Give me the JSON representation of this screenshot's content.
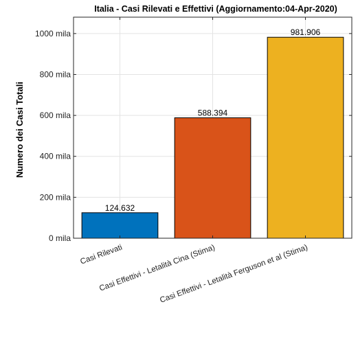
{
  "chart_data": {
    "type": "bar",
    "title": "Italia - Casi Rilevati e Effettivi (Aggiornamento:04-Apr-2020)",
    "xlabel": "",
    "ylabel": "Numero dei Casi Totali",
    "ylim": [
      0,
      1080000
    ],
    "yticks": [
      0,
      200000,
      400000,
      600000,
      800000,
      1000000
    ],
    "ytick_labels": [
      "0 mila",
      "200 mila",
      "400 mila",
      "600 mila",
      "800 mila",
      "1000 mila"
    ],
    "categories": [
      "Casi Rilevati",
      "Casi Effettivi - Letalità Cina (Stima)",
      "Casi Effettivi - Letalità Ferguson et al (Stima)"
    ],
    "values": [
      124632,
      588394,
      981906
    ],
    "value_labels": [
      "124.632",
      "588.394",
      "981.906"
    ],
    "colors": [
      "#0072BD",
      "#D95319",
      "#EDB120"
    ],
    "grid": true,
    "legend": "none"
  }
}
